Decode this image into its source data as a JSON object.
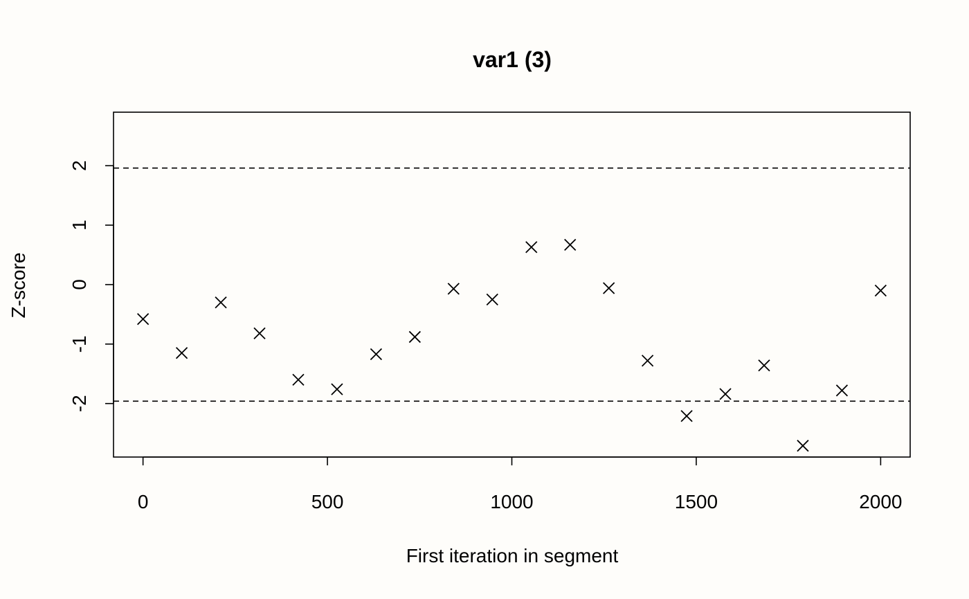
{
  "chart_data": {
    "type": "scatter",
    "title": "var1 (3)",
    "xlabel": "First iteration in segment",
    "ylabel": "Z-score",
    "xlim": [
      -80,
      2080
    ],
    "ylim": [
      -2.9,
      2.9
    ],
    "x_ticks": [
      0,
      500,
      1000,
      1500,
      2000
    ],
    "y_ticks": [
      -2,
      -1,
      0,
      1,
      2
    ],
    "reference_lines": [
      1.96,
      -1.96
    ],
    "marker": "x",
    "grid": false,
    "x": [
      0,
      105,
      211,
      316,
      421,
      526,
      632,
      737,
      842,
      947,
      1053,
      1158,
      1263,
      1368,
      1474,
      1579,
      1684,
      1789,
      1895,
      2000
    ],
    "y": [
      -0.58,
      -1.15,
      -0.3,
      -0.82,
      -1.6,
      -1.76,
      -1.17,
      -0.88,
      -0.07,
      -0.25,
      0.63,
      0.67,
      -0.06,
      -1.28,
      -2.21,
      -1.84,
      -1.36,
      -2.71,
      -1.78,
      -0.1
    ]
  }
}
